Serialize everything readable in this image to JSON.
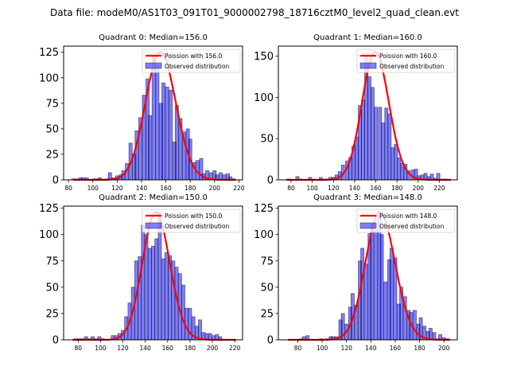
{
  "figure": {
    "suptitle": "Data file: modeM0/AS1T03_091T01_9000002798_18716cztM0_level2_quad_clean.evt"
  },
  "chart_data": [
    {
      "type": "bar",
      "title": "Quadrant 0: Median=156.0",
      "xlabel": "",
      "ylabel": "",
      "xlim": [
        76,
        223
      ],
      "ylim": [
        0,
        131
      ],
      "xticks": [
        80,
        100,
        120,
        140,
        160,
        180,
        200,
        220
      ],
      "yticks": [
        0,
        25,
        50,
        75,
        100,
        125
      ],
      "legend": {
        "position": "top-right",
        "entries": [
          "Poission with 156.0",
          "Observed distribution"
        ]
      },
      "bin_width": 2.75,
      "histogram": {
        "name": "Observed distribution",
        "x": [
          84,
          87,
          90,
          92,
          95,
          98,
          101,
          104,
          106,
          109,
          112,
          114,
          117,
          120,
          123,
          125,
          128,
          131,
          134,
          136,
          139,
          142,
          145,
          147,
          150,
          153,
          156,
          158,
          161,
          164,
          167,
          169,
          172,
          175,
          178,
          180,
          183,
          186,
          189,
          191,
          194,
          197,
          200,
          202,
          205,
          208,
          211,
          213,
          216
        ],
        "values": [
          1,
          1,
          2,
          2,
          2,
          0,
          1,
          1,
          2,
          0,
          1,
          7,
          2,
          4,
          5,
          9,
          16,
          36,
          25,
          48,
          61,
          83,
          99,
          63,
          122,
          112,
          75,
          95,
          91,
          88,
          37,
          73,
          60,
          47,
          50,
          40,
          17,
          19,
          21,
          6,
          9,
          7,
          9,
          5,
          7,
          5,
          6,
          3,
          1
        ]
      },
      "curve": {
        "name": "Poission with 156.0",
        "mean": 156.0,
        "peak": 125
      }
    },
    {
      "type": "bar",
      "title": "Quadrant 1: Median=160.0",
      "xlabel": "",
      "ylabel": "",
      "xlim": [
        68,
        237
      ],
      "ylim": [
        0,
        162
      ],
      "xticks": [
        80,
        100,
        120,
        140,
        160,
        180,
        200,
        220
      ],
      "yticks": [
        0,
        50,
        100,
        150
      ],
      "legend": {
        "position": "top-right",
        "entries": [
          "Poission with 160.0",
          "Observed distribution"
        ]
      },
      "bin_width": 3.1,
      "histogram": {
        "name": "Observed distribution",
        "x": [
          77,
          80,
          83,
          86,
          89,
          92,
          95,
          98,
          102,
          105,
          108,
          111,
          114,
          117,
          120,
          123,
          126,
          129,
          133,
          136,
          139,
          142,
          145,
          148,
          151,
          154,
          157,
          160,
          164,
          167,
          170,
          173,
          176,
          179,
          182,
          185,
          188,
          191,
          195,
          198,
          201,
          204,
          207,
          210,
          213,
          216,
          219,
          222,
          226,
          229
        ],
        "values": [
          1,
          0,
          0,
          4,
          1,
          0,
          0,
          3,
          1,
          0,
          3,
          1,
          1,
          3,
          3,
          6,
          10,
          18,
          23,
          27,
          41,
          52,
          90,
          97,
          150,
          125,
          112,
          88,
          88,
          69,
          87,
          80,
          39,
          43,
          27,
          20,
          19,
          11,
          12,
          13,
          5,
          6,
          8,
          4,
          7,
          2,
          8,
          1,
          1,
          0
        ]
      },
      "curve": {
        "name": "Poission with 160.0",
        "mean": 160.0,
        "peak": 155
      }
    },
    {
      "type": "bar",
      "title": "Quadrant 2: Median=150.0",
      "xlabel": "",
      "ylabel": "",
      "xlim": [
        67,
        227
      ],
      "ylim": [
        0,
        127
      ],
      "xticks": [
        80,
        100,
        120,
        140,
        160,
        180,
        200,
        220
      ],
      "yticks": [
        0,
        25,
        50,
        75,
        100,
        125
      ],
      "legend": {
        "position": "top-right",
        "entries": [
          "Poission with 150.0",
          "Observed distribution"
        ]
      },
      "bin_width": 2.95,
      "histogram": {
        "name": "Observed distribution",
        "x": [
          75,
          78,
          81,
          84,
          87,
          90,
          93,
          96,
          99,
          102,
          105,
          108,
          111,
          114,
          117,
          120,
          123,
          126,
          129,
          132,
          135,
          138,
          141,
          144,
          147,
          150,
          153,
          156,
          159,
          162,
          165,
          168,
          171,
          174,
          177,
          180,
          183,
          186,
          189,
          192,
          195,
          198,
          201,
          204,
          207,
          210,
          213,
          216,
          219
        ],
        "values": [
          0,
          1,
          1,
          1,
          3,
          1,
          3,
          1,
          3,
          1,
          0,
          0,
          4,
          4,
          6,
          9,
          22,
          35,
          50,
          75,
          79,
          109,
          100,
          87,
          89,
          96,
          121,
          77,
          83,
          80,
          75,
          69,
          63,
          52,
          30,
          30,
          22,
          13,
          19,
          7,
          6,
          6,
          4,
          5,
          3,
          0,
          0,
          0,
          0
        ]
      },
      "curve": {
        "name": "Poission with 150.0",
        "mean": 150.0,
        "peak": 121
      }
    },
    {
      "type": "bar",
      "title": "Quadrant 3: Median=148.0",
      "xlabel": "",
      "ylabel": "",
      "xlim": [
        64,
        211
      ],
      "ylim": [
        0,
        127
      ],
      "xticks": [
        80,
        100,
        120,
        140,
        160,
        180,
        200
      ],
      "yticks": [
        0,
        25,
        50,
        75,
        100,
        125
      ],
      "legend": {
        "position": "top-right",
        "entries": [
          "Poission with 148.0",
          "Observed distribution"
        ]
      },
      "bin_width": 2.7,
      "histogram": {
        "name": "Observed distribution",
        "x": [
          72,
          75,
          77,
          80,
          83,
          85,
          88,
          91,
          93,
          96,
          99,
          101,
          104,
          107,
          109,
          112,
          115,
          117,
          120,
          123,
          125,
          128,
          131,
          133,
          136,
          139,
          141,
          144,
          147,
          149,
          152,
          155,
          157,
          160,
          163,
          165,
          168,
          171,
          173,
          176,
          179,
          181,
          184,
          187,
          189,
          192,
          195,
          197,
          200,
          203
        ],
        "values": [
          0,
          0,
          0,
          0,
          1,
          3,
          4,
          0,
          0,
          0,
          1,
          0,
          1,
          3,
          3,
          3,
          19,
          25,
          15,
          31,
          44,
          33,
          75,
          87,
          72,
          101,
          110,
          104,
          122,
          100,
          55,
          76,
          87,
          78,
          34,
          50,
          41,
          28,
          26,
          28,
          15,
          21,
          13,
          8,
          11,
          7,
          1,
          5,
          2,
          1
        ]
      },
      "curve": {
        "name": "Poission with 148.0",
        "mean": 148.0,
        "peak": 121
      }
    }
  ]
}
